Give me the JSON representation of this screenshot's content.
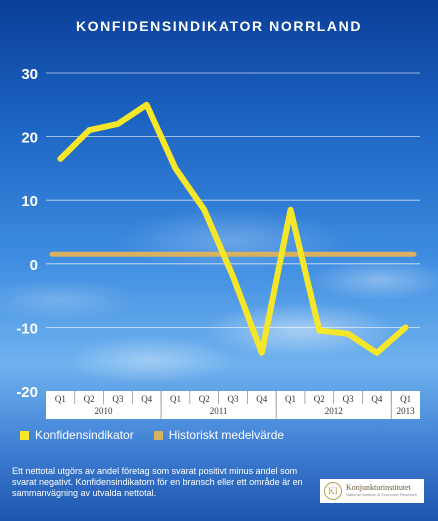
{
  "chart_data": {
    "type": "line",
    "title": "KONFIDENSINDIKATOR NORRLAND",
    "quarters": [
      "Q1",
      "Q2",
      "Q3",
      "Q4",
      "Q1",
      "Q2",
      "Q3",
      "Q4",
      "Q1",
      "Q2",
      "Q3",
      "Q4",
      "Q1"
    ],
    "years": [
      {
        "label": "2010",
        "start": 0,
        "end": 3
      },
      {
        "label": "2011",
        "start": 4,
        "end": 7
      },
      {
        "label": "2012",
        "start": 8,
        "end": 11
      },
      {
        "label": "2013",
        "start": 12,
        "end": 12
      }
    ],
    "ylim": [
      -20,
      30
    ],
    "yticks": [
      -20,
      -10,
      0,
      10,
      20,
      30
    ],
    "grid": true,
    "legend": "bottom",
    "series": [
      {
        "name": "Konfidensindikator",
        "color": "#f5e62a",
        "values": [
          16.5,
          21,
          22,
          25,
          15,
          8.5,
          -2,
          -14,
          8.5,
          -10.5,
          -11,
          -14,
          -10
        ]
      },
      {
        "name": "Historiskt medelvärde",
        "color": "#d7b060",
        "values": [
          1.5,
          1.5,
          1.5,
          1.5,
          1.5,
          1.5,
          1.5,
          1.5,
          1.5,
          1.5,
          1.5,
          1.5,
          1.5
        ]
      }
    ]
  },
  "footer": {
    "note": "Ett nettotal utgörs av andel företag som svarat positivt minus andel som svarat negativt. Konfidensindikatorn för en bransch eller ett område är en sammanvägning av utvalda nettotal.",
    "logo_mark": "KI",
    "logo_name": "Konjunkturinstitutet",
    "logo_sub": "National Institute of Economic Research"
  }
}
